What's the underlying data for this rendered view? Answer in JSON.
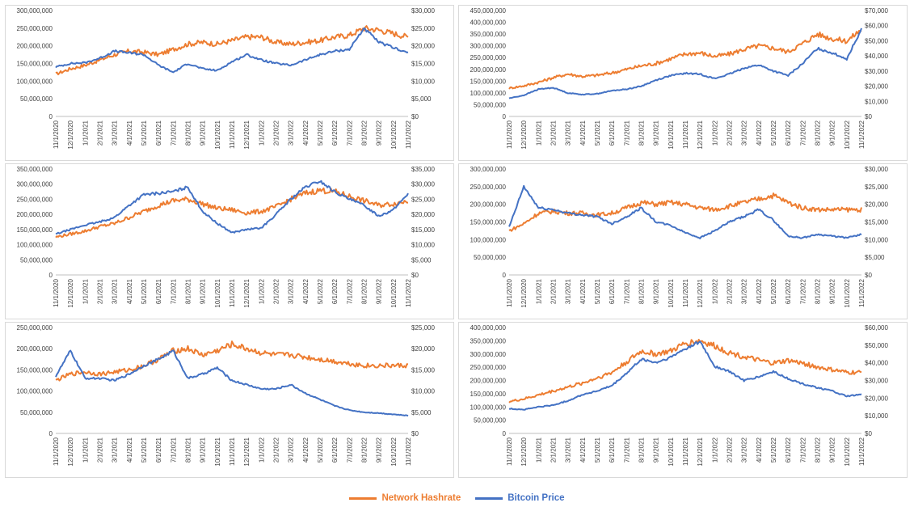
{
  "colors": {
    "hashrate": "#ED7D31",
    "price": "#4472C4"
  },
  "legend": {
    "hashrate": "Network Hashrate",
    "price": "Bitcoin Price"
  },
  "chart_data": [
    {
      "type": "line",
      "x_ticks": [
        "11/1/2020",
        "12/1/2020",
        "1/1/2021",
        "2/1/2021",
        "3/1/2021",
        "4/1/2021",
        "5/1/2021",
        "6/1/2021",
        "7/1/2021",
        "8/1/2021",
        "9/1/2021",
        "10/1/2021",
        "11/1/2021",
        "12/1/2021",
        "1/1/2022",
        "2/1/2022",
        "3/1/2022",
        "4/1/2022",
        "5/1/2022",
        "6/1/2022",
        "7/1/2022",
        "8/1/2022",
        "9/1/2022",
        "10/1/2022",
        "11/1/2022"
      ],
      "y_left": {
        "ticks": [
          "0",
          "50,000,000",
          "100,000,000",
          "150,000,000",
          "200,000,000",
          "250,000,000",
          "300,000,000"
        ],
        "min": 0,
        "max": 300000000
      },
      "y_right": {
        "ticks": [
          "$0",
          "$5,000",
          "$10,000",
          "$15,000",
          "$20,000",
          "$25,000",
          "$30,000"
        ],
        "min": 0,
        "max": 30000
      },
      "series": [
        {
          "name": "Network Hashrate",
          "axis": "left",
          "values": [
            120000000,
            135000000,
            145000000,
            160000000,
            175000000,
            185000000,
            182000000,
            175000000,
            190000000,
            205000000,
            210000000,
            205000000,
            215000000,
            225000000,
            225000000,
            210000000,
            205000000,
            210000000,
            215000000,
            225000000,
            230000000,
            250000000,
            245000000,
            235000000,
            225000000
          ]
        },
        {
          "name": "Bitcoin Price",
          "axis": "right",
          "values": [
            14000,
            15000,
            15200,
            16500,
            18500,
            18000,
            17500,
            14500,
            12500,
            15000,
            13500,
            13000,
            15500,
            17500,
            16000,
            15000,
            14500,
            16000,
            17500,
            18500,
            19000,
            25000,
            21000,
            19500,
            18000
          ]
        }
      ]
    },
    {
      "type": "line",
      "x_ticks": [
        "11/1/2020",
        "12/1/2020",
        "1/1/2021",
        "2/1/2021",
        "3/1/2021",
        "4/1/2021",
        "5/1/2021",
        "6/1/2021",
        "7/1/2021",
        "8/1/2021",
        "9/1/2021",
        "10/1/2021",
        "11/1/2021",
        "12/1/2021",
        "1/1/2022",
        "2/1/2022",
        "3/1/2022",
        "4/1/2022",
        "5/1/2022",
        "6/1/2022",
        "7/1/2022",
        "8/1/2022",
        "9/1/2022",
        "10/1/2022",
        "11/1/2022"
      ],
      "y_left": {
        "ticks": [
          "0",
          "50,000,000",
          "100,000,000",
          "150,000,000",
          "200,000,000",
          "250,000,000",
          "300,000,000",
          "350,000,000",
          "400,000,000",
          "450,000,000"
        ],
        "min": 0,
        "max": 450000000
      },
      "y_right": {
        "ticks": [
          "$0",
          "$10,000",
          "$20,000",
          "$30,000",
          "$40,000",
          "$50,000",
          "$60,000",
          "$70,000"
        ],
        "min": 0,
        "max": 70000
      },
      "series": [
        {
          "name": "Network Hashrate",
          "axis": "left",
          "values": [
            120000000,
            130000000,
            145000000,
            165000000,
            180000000,
            170000000,
            175000000,
            185000000,
            200000000,
            215000000,
            225000000,
            245000000,
            265000000,
            270000000,
            255000000,
            265000000,
            285000000,
            300000000,
            290000000,
            275000000,
            310000000,
            350000000,
            330000000,
            320000000,
            370000000
          ]
        },
        {
          "name": "Bitcoin Price",
          "axis": "right",
          "values": [
            12000,
            14000,
            18000,
            19000,
            15500,
            14500,
            15000,
            17000,
            18000,
            20000,
            24000,
            27000,
            28500,
            28000,
            25000,
            28000,
            32000,
            34000,
            30000,
            27000,
            35000,
            45000,
            42000,
            38000,
            58000
          ]
        }
      ]
    },
    {
      "type": "line",
      "x_ticks": [
        "11/1/2020",
        "12/1/2020",
        "1/1/2021",
        "2/1/2021",
        "3/1/2021",
        "4/1/2021",
        "5/1/2021",
        "6/1/2021",
        "7/1/2021",
        "8/1/2021",
        "9/1/2021",
        "10/1/2021",
        "11/1/2021",
        "12/1/2021",
        "1/1/2022",
        "2/1/2022",
        "3/1/2022",
        "4/1/2022",
        "5/1/2022",
        "6/1/2022",
        "7/1/2022",
        "8/1/2022",
        "9/1/2022",
        "10/1/2022",
        "11/1/2022"
      ],
      "y_left": {
        "ticks": [
          "0",
          "50,000,000",
          "100,000,000",
          "150,000,000",
          "200,000,000",
          "250,000,000",
          "300,000,000",
          "350,000,000"
        ],
        "min": 0,
        "max": 350000000
      },
      "y_right": {
        "ticks": [
          "$0",
          "$5,000",
          "$10,000",
          "$15,000",
          "$20,000",
          "$25,000",
          "$30,000",
          "$35,000"
        ],
        "min": 0,
        "max": 35000
      },
      "series": [
        {
          "name": "Network Hashrate",
          "axis": "left",
          "values": [
            125000000,
            135000000,
            145000000,
            160000000,
            170000000,
            190000000,
            210000000,
            230000000,
            245000000,
            250000000,
            235000000,
            220000000,
            215000000,
            205000000,
            210000000,
            225000000,
            250000000,
            270000000,
            280000000,
            275000000,
            260000000,
            245000000,
            230000000,
            235000000,
            245000000
          ]
        },
        {
          "name": "Bitcoin Price",
          "axis": "right",
          "values": [
            13500,
            15000,
            16500,
            17500,
            19000,
            23000,
            26500,
            27000,
            27500,
            29000,
            21000,
            17000,
            14000,
            15000,
            15500,
            20000,
            25000,
            29000,
            31000,
            27500,
            25000,
            23000,
            19500,
            21500,
            27000
          ]
        }
      ]
    },
    {
      "type": "line",
      "x_ticks": [
        "11/1/2020",
        "12/1/2020",
        "1/1/2021",
        "2/1/2021",
        "3/1/2021",
        "4/1/2021",
        "5/1/2021",
        "6/1/2021",
        "7/1/2021",
        "8/1/2021",
        "9/1/2021",
        "10/1/2021",
        "11/1/2021",
        "12/1/2021",
        "1/1/2022",
        "2/1/2022",
        "3/1/2022",
        "4/1/2022",
        "5/1/2022",
        "6/1/2022",
        "7/1/2022",
        "8/1/2022",
        "9/1/2022",
        "10/1/2022",
        "11/1/2022"
      ],
      "y_left": {
        "ticks": [
          "0",
          "50,000,000",
          "100,000,000",
          "150,000,000",
          "200,000,000",
          "250,000,000",
          "300,000,000"
        ],
        "min": 0,
        "max": 300000000
      },
      "y_right": {
        "ticks": [
          "$0",
          "$5,000",
          "$10,000",
          "$15,000",
          "$20,000",
          "$25,000",
          "$30,000"
        ],
        "min": 0,
        "max": 30000
      },
      "series": [
        {
          "name": "Network Hashrate",
          "axis": "left",
          "values": [
            125000000,
            145000000,
            175000000,
            180000000,
            175000000,
            175000000,
            170000000,
            175000000,
            190000000,
            205000000,
            200000000,
            205000000,
            200000000,
            190000000,
            185000000,
            195000000,
            205000000,
            215000000,
            225000000,
            205000000,
            190000000,
            185000000,
            185000000,
            185000000,
            185000000
          ]
        },
        {
          "name": "Bitcoin Price",
          "axis": "right",
          "values": [
            13500,
            25000,
            19000,
            18500,
            17500,
            17000,
            16500,
            14500,
            16500,
            19000,
            15000,
            14000,
            12000,
            10500,
            12500,
            15000,
            16500,
            18500,
            15500,
            11000,
            10500,
            11500,
            11000,
            10500,
            11500
          ]
        }
      ]
    },
    {
      "type": "line",
      "x_ticks": [
        "11/1/2020",
        "12/1/2020",
        "1/1/2021",
        "2/1/2021",
        "3/1/2021",
        "4/1/2021",
        "5/1/2021",
        "6/1/2021",
        "7/1/2021",
        "8/1/2021",
        "9/1/2021",
        "10/1/2021",
        "11/1/2021",
        "12/1/2021",
        "1/1/2022",
        "2/1/2022",
        "3/1/2022",
        "4/1/2022",
        "5/1/2022",
        "6/1/2022",
        "7/1/2022",
        "8/1/2022",
        "9/1/2022",
        "10/1/2022",
        "11/1/2022"
      ],
      "y_left": {
        "ticks": [
          "0",
          "50,000,000",
          "100,000,000",
          "150,000,000",
          "200,000,000",
          "250,000,000"
        ],
        "min": 0,
        "max": 250000000
      },
      "y_right": {
        "ticks": [
          "$0",
          "$5,000",
          "$10,000",
          "$15,000",
          "$20,000",
          "$25,000"
        ],
        "min": 0,
        "max": 25000
      },
      "series": [
        {
          "name": "Network Hashrate",
          "axis": "left",
          "values": [
            125000000,
            140000000,
            145000000,
            140000000,
            145000000,
            150000000,
            160000000,
            175000000,
            195000000,
            200000000,
            185000000,
            195000000,
            210000000,
            200000000,
            190000000,
            185000000,
            185000000,
            180000000,
            175000000,
            170000000,
            165000000,
            160000000,
            160000000,
            160000000,
            160000000
          ]
        },
        {
          "name": "Bitcoin Price",
          "axis": "right",
          "values": [
            13500,
            19500,
            13000,
            13000,
            12500,
            14000,
            16000,
            17500,
            19500,
            13000,
            14000,
            15500,
            12500,
            11500,
            10500,
            10500,
            11500,
            9500,
            8000,
            6500,
            5500,
            5000,
            4800,
            4500,
            4200
          ]
        }
      ]
    },
    {
      "type": "line",
      "x_ticks": [
        "11/1/2020",
        "12/1/2020",
        "1/1/2021",
        "2/1/2021",
        "3/1/2021",
        "4/1/2021",
        "5/1/2021",
        "6/1/2021",
        "7/1/2021",
        "8/1/2021",
        "9/1/2021",
        "10/1/2021",
        "11/1/2021",
        "12/1/2021",
        "1/1/2022",
        "2/1/2022",
        "3/1/2022",
        "4/1/2022",
        "5/1/2022",
        "6/1/2022",
        "7/1/2022",
        "8/1/2022",
        "9/1/2022",
        "10/1/2022",
        "11/1/2022"
      ],
      "y_left": {
        "ticks": [
          "0",
          "50,000,000",
          "100,000,000",
          "150,000,000",
          "200,000,000",
          "250,000,000",
          "300,000,000",
          "350,000,000",
          "400,000,000"
        ],
        "min": 0,
        "max": 400000000
      },
      "y_right": {
        "ticks": [
          "$0",
          "$10,000",
          "$20,000",
          "$30,000",
          "$40,000",
          "$50,000",
          "$60,000"
        ],
        "min": 0,
        "max": 60000
      },
      "series": [
        {
          "name": "Network Hashrate",
          "axis": "left",
          "values": [
            120000000,
            130000000,
            145000000,
            160000000,
            175000000,
            190000000,
            210000000,
            230000000,
            270000000,
            310000000,
            300000000,
            310000000,
            340000000,
            350000000,
            330000000,
            305000000,
            290000000,
            275000000,
            265000000,
            275000000,
            265000000,
            250000000,
            240000000,
            230000000,
            230000000
          ]
        },
        {
          "name": "Bitcoin Price",
          "axis": "right",
          "values": [
            14000,
            13500,
            15000,
            16000,
            18500,
            22000,
            24000,
            27000,
            34000,
            42000,
            40000,
            43000,
            48000,
            52000,
            38000,
            35000,
            30000,
            32000,
            35000,
            31000,
            28000,
            26000,
            24000,
            21000,
            22000
          ]
        }
      ]
    }
  ]
}
